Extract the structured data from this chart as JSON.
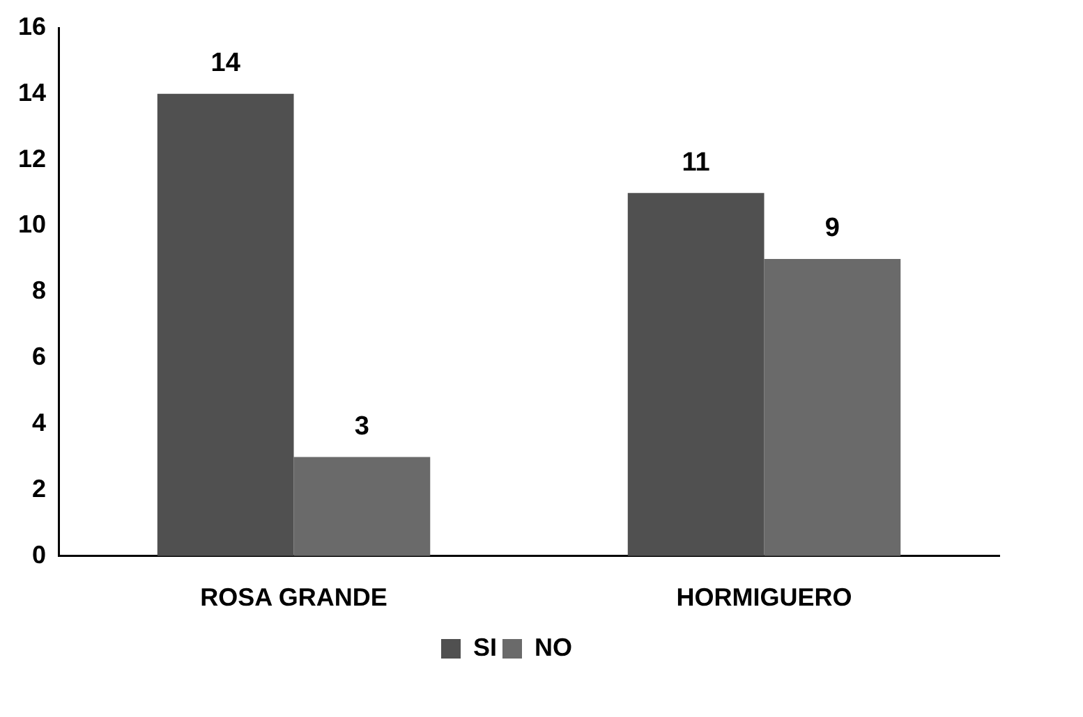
{
  "chart_data": {
    "type": "bar",
    "categories": [
      "ROSA GRANDE",
      "HORMIGUERO"
    ],
    "series": [
      {
        "name": "SI",
        "color": "#505050",
        "values": [
          14,
          11
        ]
      },
      {
        "name": "NO",
        "color": "#6a6a6a",
        "values": [
          3,
          9
        ]
      }
    ],
    "ylim": [
      0,
      16
    ],
    "yticks": [
      0,
      2,
      4,
      6,
      8,
      10,
      12,
      14,
      16
    ],
    "grid": false,
    "legend": "bottom",
    "data_labels": true
  }
}
